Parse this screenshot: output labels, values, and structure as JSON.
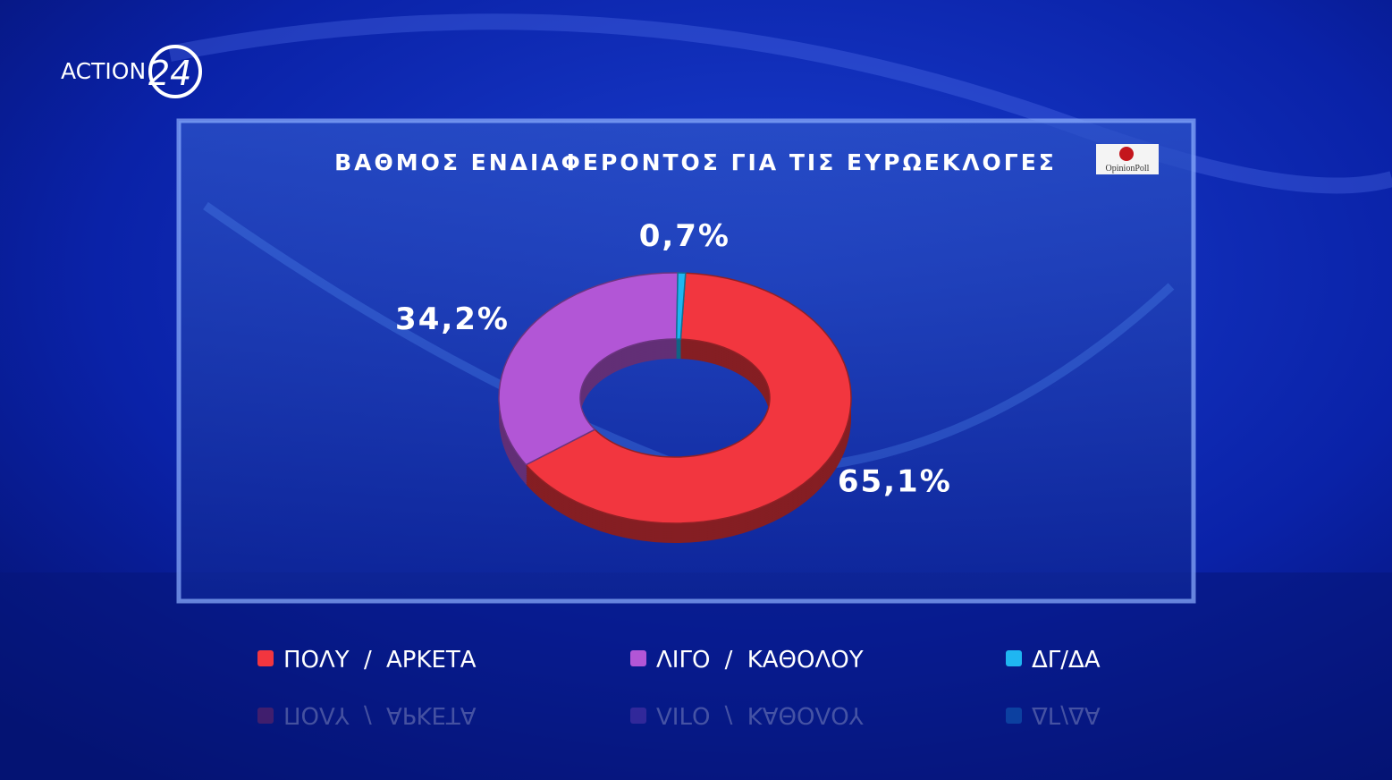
{
  "branding": {
    "channel": "ACTION",
    "channel_number": "24",
    "pollster": "OpinionPoll"
  },
  "chart_data": {
    "type": "donut",
    "title": "ΒΑΘΜΟΣ ΕΝΔΙΑΦΕΡΟΝΤΟΣ ΓΙΑ ΤΙΣ ΕΥΡΩΕΚΛΟΓΕΣ",
    "categories": [
      "ΠΟΛΥ / ΑΡΚΕΤΑ",
      "ΛΙΓΟ / ΚΑΘΟΛΟΥ",
      "ΔΓ/ΔΑ"
    ],
    "values": [
      65.1,
      34.2,
      0.7
    ],
    "value_labels": [
      "65,1%",
      "34,2%",
      "0,7%"
    ],
    "colors": [
      "#f2363f",
      "#b256d6",
      "#1fb6f2"
    ],
    "legend": "bottom"
  }
}
